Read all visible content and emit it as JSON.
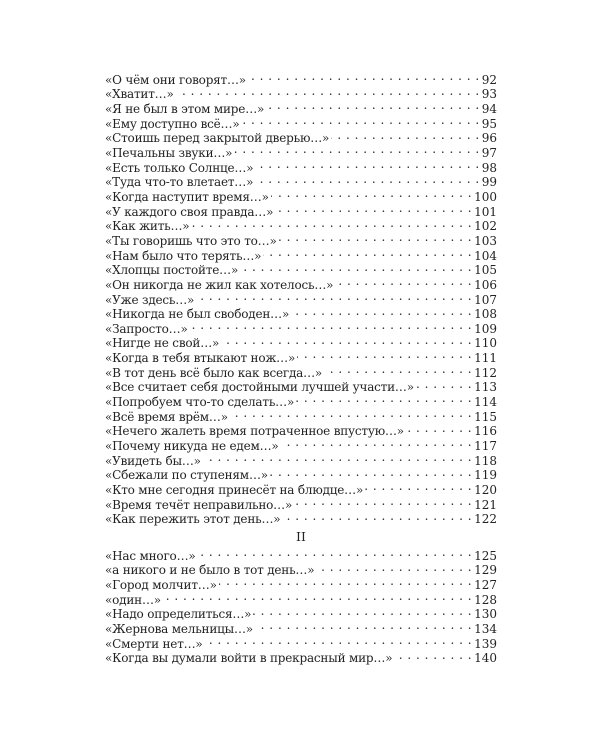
{
  "section1": {
    "entries": [
      {
        "title": "«О чём они говорят…»",
        "page": "92"
      },
      {
        "title": "«Хватит…»",
        "page": "93"
      },
      {
        "title": "«Я не был в этом мире…»",
        "page": "94"
      },
      {
        "title": "«Ему доступно всё…»",
        "page": "95"
      },
      {
        "title": "«Стоишь перед закрытой дверью…»",
        "page": "96"
      },
      {
        "title": "«Печальны звуки…»",
        "page": "97"
      },
      {
        "title": "«Есть только Солнце…»",
        "page": "98"
      },
      {
        "title": "«Туда что-то влетает…»",
        "page": "99"
      },
      {
        "title": "«Когда наступит время…»",
        "page": "100"
      },
      {
        "title": "«У каждого своя правда…»",
        "page": "101"
      },
      {
        "title": "«Как жить…»",
        "page": "102"
      },
      {
        "title": "«Ты говоришь что это то…»",
        "page": "103"
      },
      {
        "title": "«Нам было что терять…»",
        "page": "104"
      },
      {
        "title": "«Хлопцы постойте…»",
        "page": "105"
      },
      {
        "title": "«Он никогда не жил как хотелось…»",
        "page": "106"
      },
      {
        "title": "«Уже здесь…»",
        "page": "107"
      },
      {
        "title": "«Никогда не был свободен…»",
        "page": "108"
      },
      {
        "title": "«Запросто…»",
        "page": "109"
      },
      {
        "title": "«Нигде не свой…»",
        "page": "110"
      },
      {
        "title": "«Когда в тебя втыкают нож…»",
        "page": "111"
      },
      {
        "title": "«В тот день всё было как всегда…»",
        "page": "112"
      },
      {
        "title": "«Все считает себя достойными лучшей участи…»",
        "page": "113"
      },
      {
        "title": "«Попробуем что-то сделать…»",
        "page": "114"
      },
      {
        "title": "«Всё время врём…»",
        "page": "115"
      },
      {
        "title": "«Нечего жалеть время потраченное впустую…»",
        "page": "116"
      },
      {
        "title": "«Почему никуда не едем…»",
        "page": "117"
      },
      {
        "title": "«Увидеть бы…»",
        "page": "118"
      },
      {
        "title": "«Сбежали по ступеням…»",
        "page": "119"
      },
      {
        "title": "«Кто мне сегодня принесёт на блюдце…»",
        "page": "120"
      },
      {
        "title": "«Время течёт неправильно…»",
        "page": "121"
      },
      {
        "title": "«Как пережить этот день…»",
        "page": "122"
      }
    ]
  },
  "section2": {
    "heading": "II",
    "entries": [
      {
        "title": "«Нас много…»",
        "page": "125"
      },
      {
        "title": "«а никого и не было в тот день…»",
        "page": "129"
      },
      {
        "title": "«Город молчит…»",
        "page": "127"
      },
      {
        "title": "«один…»",
        "page": "128"
      },
      {
        "title": "«Надо определиться…»",
        "page": "130"
      },
      {
        "title": "«Жернова мельницы…»",
        "page": "134"
      },
      {
        "title": "«Смерти нет…»",
        "page": "139"
      },
      {
        "title": "«Когда вы думали войти в прекрасный мир…»",
        "page": "140"
      }
    ]
  }
}
